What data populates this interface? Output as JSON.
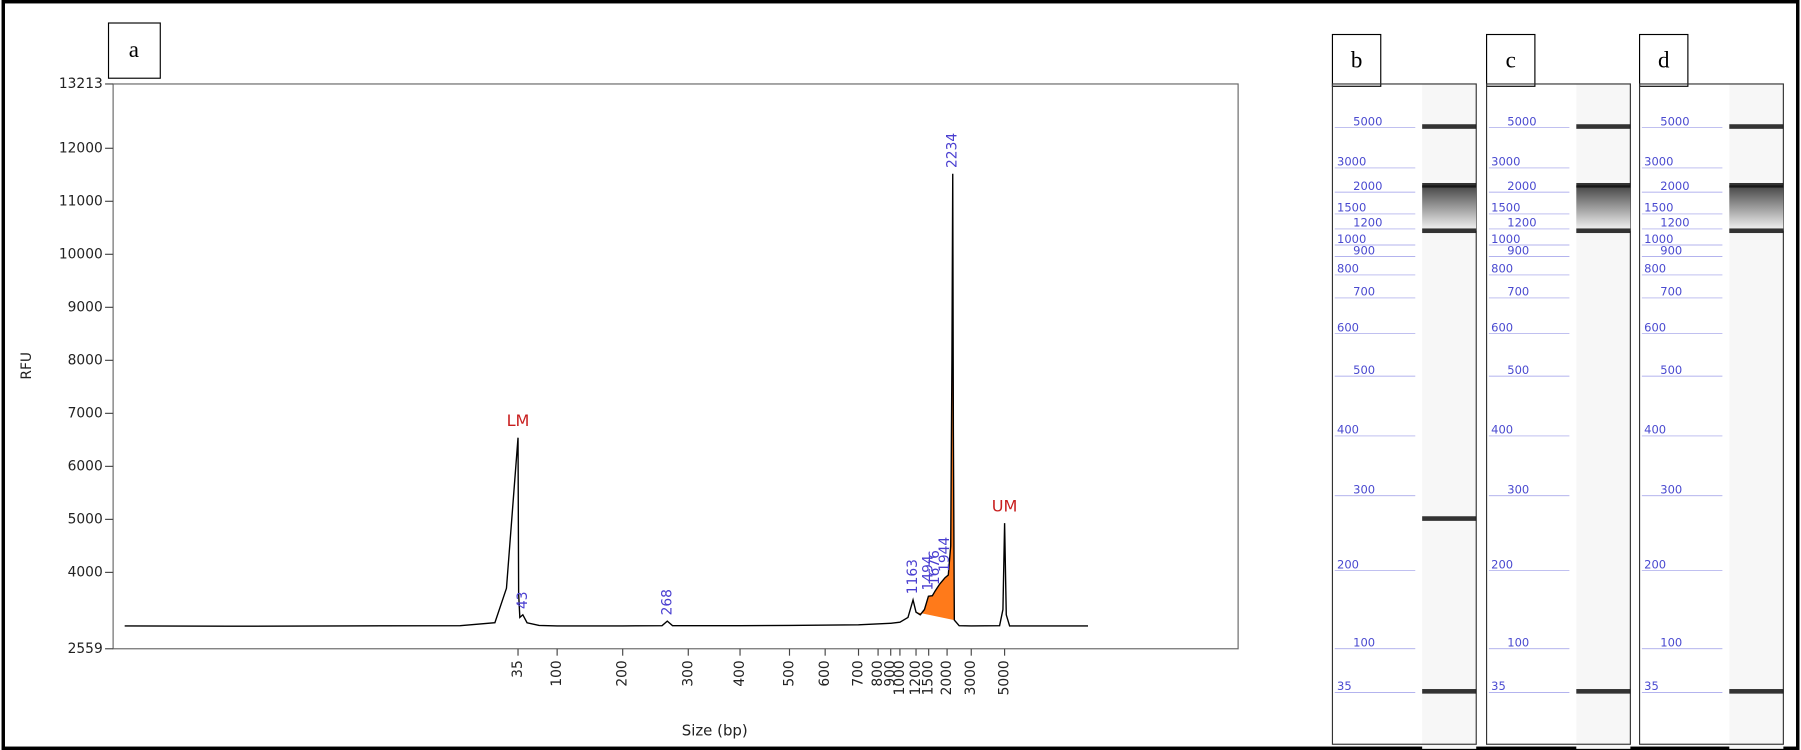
{
  "chart_data": [
    {
      "type": "line",
      "panel_label": "a",
      "x_label": "Size (bp)",
      "y_label": "RFU",
      "xticks": [
        35,
        100,
        200,
        300,
        400,
        500,
        600,
        700,
        800,
        900,
        1000,
        1200,
        1500,
        2000,
        3000,
        5000
      ],
      "ylim": [
        2559,
        13213
      ],
      "yticks": [
        2559,
        4000,
        5000,
        6000,
        7000,
        8000,
        9000,
        10000,
        11000,
        12000,
        13213
      ],
      "x": [
        1,
        10,
        20,
        30,
        33,
        34,
        35,
        36,
        38,
        43,
        50,
        70,
        100,
        200,
        260,
        268,
        276,
        400,
        500,
        700,
        900,
        1000,
        1100,
        1163,
        1200,
        1300,
        1400,
        1494,
        1600,
        1676,
        1800,
        1944,
        2050,
        2150,
        2200,
        2234,
        2260,
        2300,
        2500,
        3000,
        4700,
        4900,
        5000,
        5100,
        5300,
        10000
      ],
      "values": [
        2990,
        2985,
        2990,
        2995,
        3050,
        3700,
        6540,
        3600,
        3150,
        3200,
        3050,
        3000,
        2990,
        2990,
        2995,
        3080,
        2995,
        2995,
        3000,
        3010,
        3040,
        3060,
        3150,
        3480,
        3250,
        3200,
        3300,
        3550,
        3560,
        3650,
        3780,
        3900,
        3950,
        4500,
        8000,
        11520,
        6700,
        3100,
        2995,
        2990,
        2995,
        3300,
        4930,
        3200,
        2990,
        2990
      ],
      "color": "#000000",
      "fill_color": "#ff7a1a",
      "peak_fill_color": "#e01010",
      "peak_labels": [
        43,
        268,
        1163,
        1494,
        1676,
        1944,
        2234
      ],
      "peak_label_color": "#4a3fd0",
      "markers": [
        {
          "label": "LM",
          "size": 35
        },
        {
          "label": "UM",
          "size": 5000
        }
      ],
      "marker_color": "#c81e1e"
    },
    {
      "type": "gel",
      "panel_label": "b",
      "ladder": [
        5000,
        3000,
        2000,
        1500,
        1200,
        1000,
        900,
        800,
        700,
        600,
        500,
        400,
        300,
        200,
        100,
        35
      ],
      "bands": [
        35,
        268,
        1163,
        2234,
        5000
      ]
    },
    {
      "type": "gel",
      "panel_label": "c",
      "ladder": [
        5000,
        3000,
        2000,
        1500,
        1200,
        1000,
        900,
        800,
        700,
        600,
        500,
        400,
        300,
        200,
        100,
        35
      ],
      "bands": [
        35,
        1163,
        2234,
        5000
      ]
    },
    {
      "type": "gel",
      "panel_label": "d",
      "ladder": [
        5000,
        3000,
        2000,
        1500,
        1200,
        1000,
        900,
        800,
        700,
        600,
        500,
        400,
        300,
        200,
        100,
        35
      ],
      "bands": [
        35,
        1163,
        2234,
        5000
      ]
    }
  ]
}
